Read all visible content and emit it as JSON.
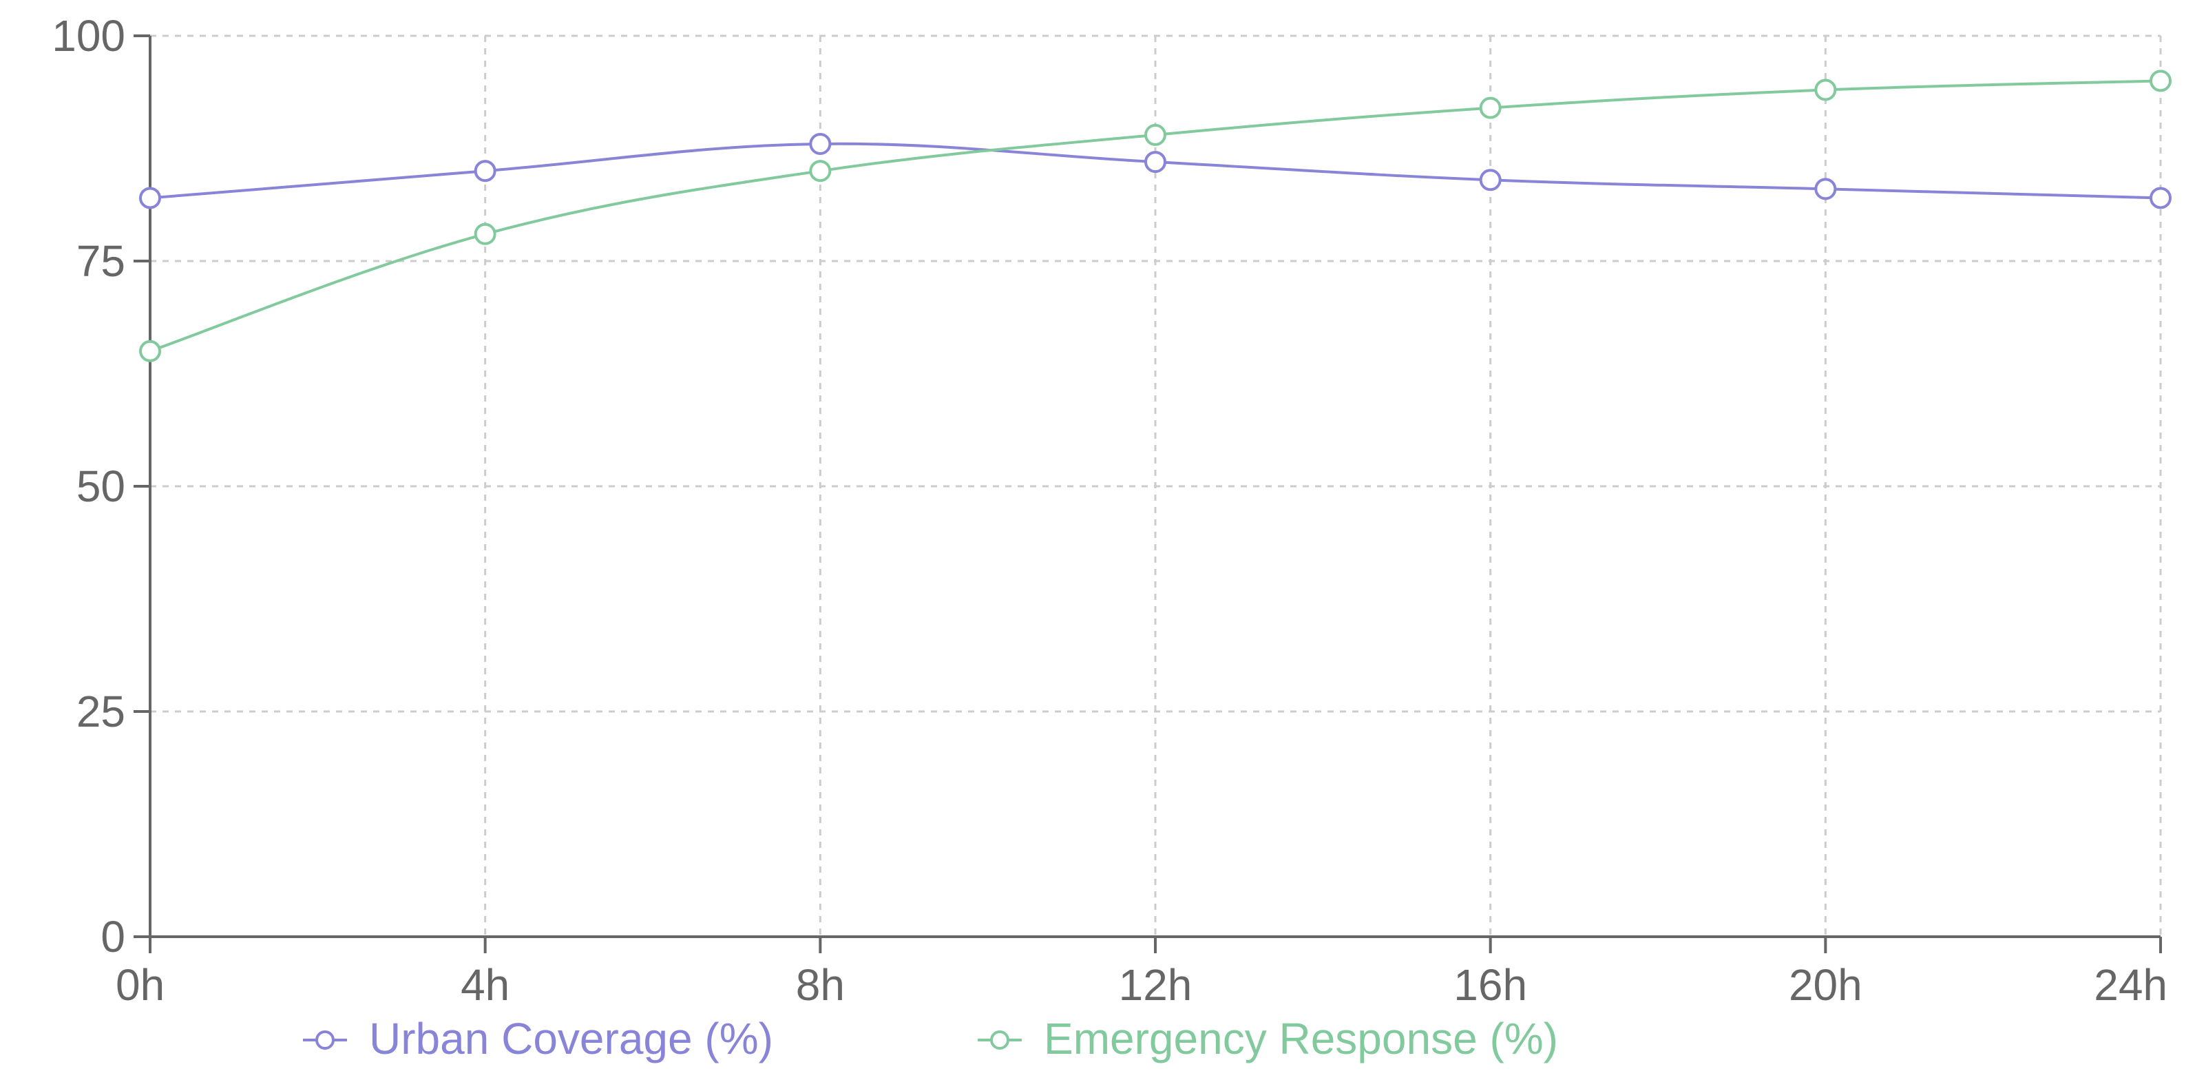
{
  "chart_data": {
    "type": "line",
    "x": [
      "0h",
      "4h",
      "8h",
      "12h",
      "16h",
      "20h",
      "24h"
    ],
    "series": [
      {
        "name": "Urban Coverage (%)",
        "color": "#8884d8",
        "values": [
          82,
          85,
          88,
          86,
          84,
          83,
          82
        ]
      },
      {
        "name": "Emergency Response (%)",
        "color": "#82ca9d",
        "values": [
          65,
          78,
          85,
          89,
          92,
          94,
          95
        ]
      }
    ],
    "y_ticks": [
      0,
      25,
      50,
      75,
      100
    ],
    "ylim": [
      0,
      100
    ],
    "grid": true,
    "legend": "bottom-center",
    "title": "",
    "xlabel": "",
    "ylabel": ""
  }
}
